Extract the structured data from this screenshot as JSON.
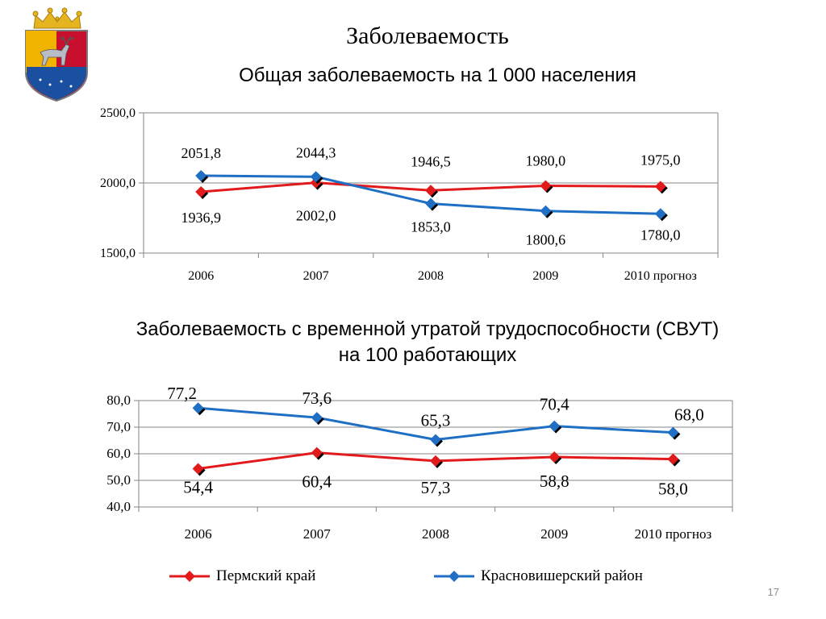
{
  "slide": {
    "title": "Заболеваемость",
    "page_number": "17",
    "logo_icon": "coat-of-arms-icon"
  },
  "colors": {
    "perm": "#e31a1c",
    "krasnovishersk": "#1f6fc5",
    "grid": "#868686"
  },
  "chart_data": [
    {
      "type": "line",
      "title": "Общая заболеваемость на 1 000 населения",
      "categories": [
        "2006",
        "2007",
        "2008",
        "2009",
        "2010 прогноз"
      ],
      "ylim": [
        1500,
        2500
      ],
      "yticks": [
        "1500,0",
        "2000,0",
        "2500,0"
      ],
      "ytick_values": [
        1500,
        2000,
        2500
      ],
      "grid": true,
      "series": [
        {
          "name": "Пермский край",
          "values": [
            1936.9,
            2002.0,
            1946.5,
            1980.0,
            1975.0
          ],
          "labels": [
            "1936,9",
            "2002,0",
            "1946,5",
            "1980,0",
            "1975,0"
          ]
        },
        {
          "name": "Красновишерский район",
          "values": [
            2051.8,
            2044.3,
            1853.0,
            1800.6,
            1780.0
          ],
          "labels": [
            "2051,8",
            "2044,3",
            "1853,0",
            "1800,6",
            "1780,0"
          ]
        }
      ]
    },
    {
      "type": "line",
      "title": "Заболеваемость с временной утратой трудоспособности (СВУТ) на 100 работающих",
      "title_lines": [
        "Заболеваемость с временной утратой трудоспособности (СВУТ)",
        "на 100 работающих"
      ],
      "categories": [
        "2006",
        "2007",
        "2008",
        "2009",
        "2010 прогноз"
      ],
      "ylim": [
        40,
        80
      ],
      "yticks": [
        "40,0",
        "50,0",
        "60,0",
        "70,0",
        "80,0"
      ],
      "ytick_values": [
        40,
        50,
        60,
        70,
        80
      ],
      "grid": true,
      "legend_position": "bottom",
      "series": [
        {
          "name": "Пермский край",
          "values": [
            54.4,
            60.4,
            57.3,
            58.8,
            58.0
          ],
          "labels": [
            "54,4",
            "60,4",
            "57,3",
            "58,8",
            "58,0"
          ]
        },
        {
          "name": "Красновишерский район",
          "values": [
            77.2,
            73.6,
            65.3,
            70.4,
            68.0
          ],
          "labels": [
            "77,2",
            "73,6",
            "65,3",
            "70,4",
            "68,0"
          ]
        }
      ]
    }
  ]
}
